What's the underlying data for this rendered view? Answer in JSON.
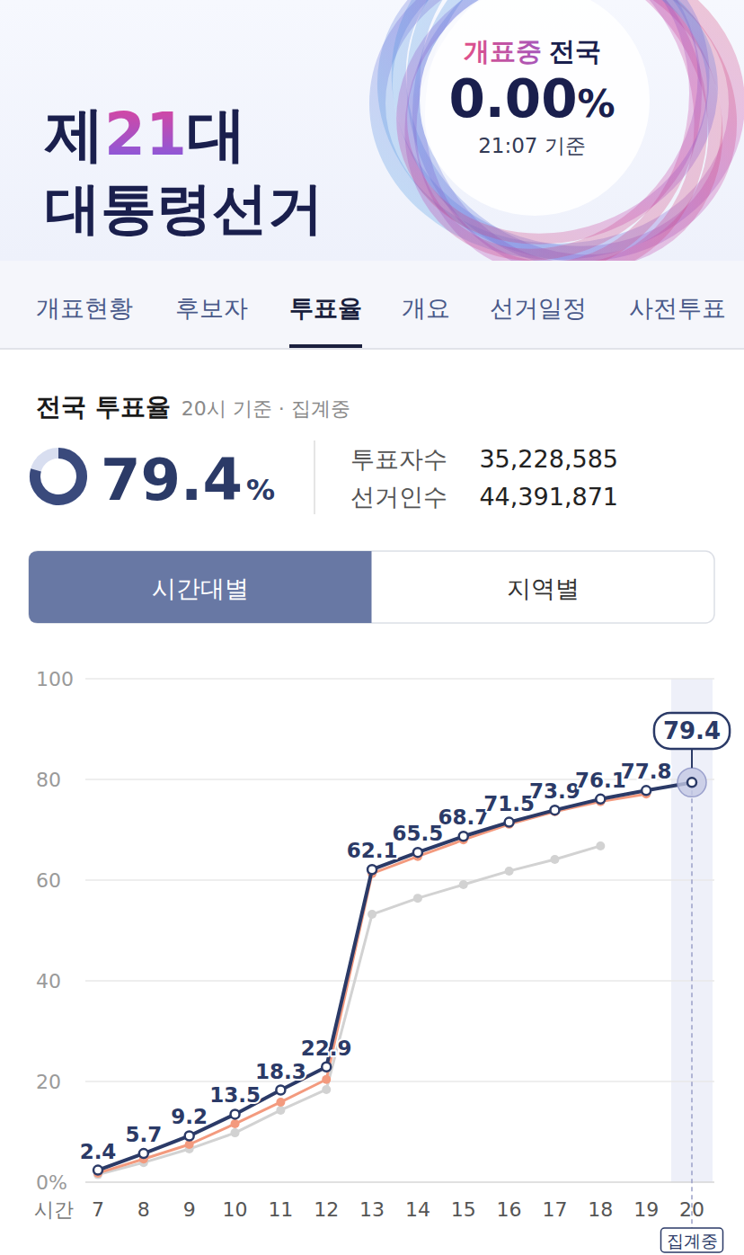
{
  "header": {
    "title_prefix": "제",
    "title_number": "21",
    "title_suffix": "대",
    "title_line2": "대통령선거",
    "status": "개표중",
    "region": "전국",
    "progress": "0.00",
    "progress_unit": "%",
    "as_of": "21:07 기준"
  },
  "tabs": {
    "items": [
      "개표현황",
      "후보자",
      "투표율",
      "개요",
      "선거일정",
      "사전투표"
    ],
    "selected": 2
  },
  "summary": {
    "title": "전국 투표율",
    "subtitle": "20시 기준 · 집계중",
    "turnout": 79.4,
    "turnout_unit": "%",
    "voters_label": "투표자수",
    "voters": "35,228,585",
    "electorate_label": "선거인수",
    "electorate": "44,391,871"
  },
  "toggle": {
    "items": [
      "시간대별",
      "지역별"
    ],
    "selected": 0
  },
  "chart_data": {
    "type": "line",
    "categories": [
      "7",
      "8",
      "9",
      "10",
      "11",
      "12",
      "13",
      "14",
      "15",
      "16",
      "17",
      "18",
      "19",
      "20"
    ],
    "x_label": "시간",
    "annotation": "집계중",
    "ylim": [
      0,
      100
    ],
    "yticks": [
      {
        "value": 0,
        "label": "0%"
      },
      20,
      40,
      60,
      80,
      100
    ],
    "grid": true,
    "series": [
      {
        "color": "#2b3a67",
        "marker": "circle",
        "data_labels": true,
        "values": [
          2.4,
          5.7,
          9.2,
          13.5,
          18.3,
          22.9,
          62.1,
          65.5,
          68.7,
          71.5,
          73.9,
          76.1,
          77.8,
          79.4
        ]
      },
      {
        "color": "#f39a7e",
        "marker": "circle",
        "values": [
          1.8,
          4.6,
          7.5,
          11.6,
          15.9,
          20.4,
          61.3,
          64.7,
          68.0,
          71.1,
          73.6,
          75.6,
          77.1,
          null
        ]
      },
      {
        "color": "#d2d2d2",
        "marker": "circle",
        "values": [
          1.5,
          3.9,
          6.6,
          9.8,
          14.3,
          18.4,
          53.2,
          56.4,
          59.1,
          61.8,
          64.1,
          66.8,
          null,
          null
        ]
      }
    ]
  }
}
